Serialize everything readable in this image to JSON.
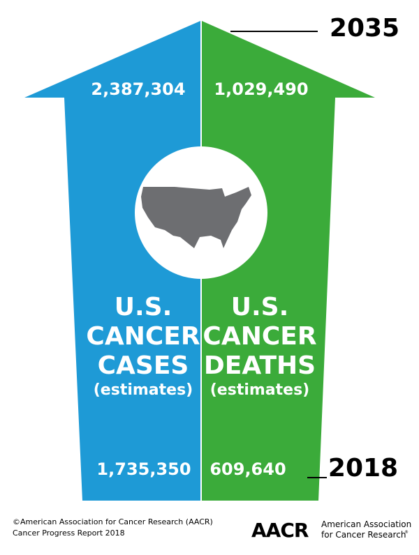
{
  "years": {
    "top": "2035",
    "bottom": "2018"
  },
  "cases": {
    "title_lines": [
      "U.S.",
      "CANCER",
      "CASES"
    ],
    "note": "(estimates)",
    "top_value": "2,387,304",
    "bottom_value": "1,735,350"
  },
  "deaths": {
    "title_lines": [
      "U.S.",
      "CANCER",
      "DEATHS"
    ],
    "note": "(estimates)",
    "top_value": "1,029,490",
    "bottom_value": "609,640"
  },
  "footer": {
    "credit_lines": [
      "©American Association for Cancer Research (AACR)",
      "Cancer Progress Report 2018"
    ],
    "logo": "AACR",
    "org_lines": [
      "American Association",
      "for Cancer Research"
    ],
    "registered": "®"
  }
}
